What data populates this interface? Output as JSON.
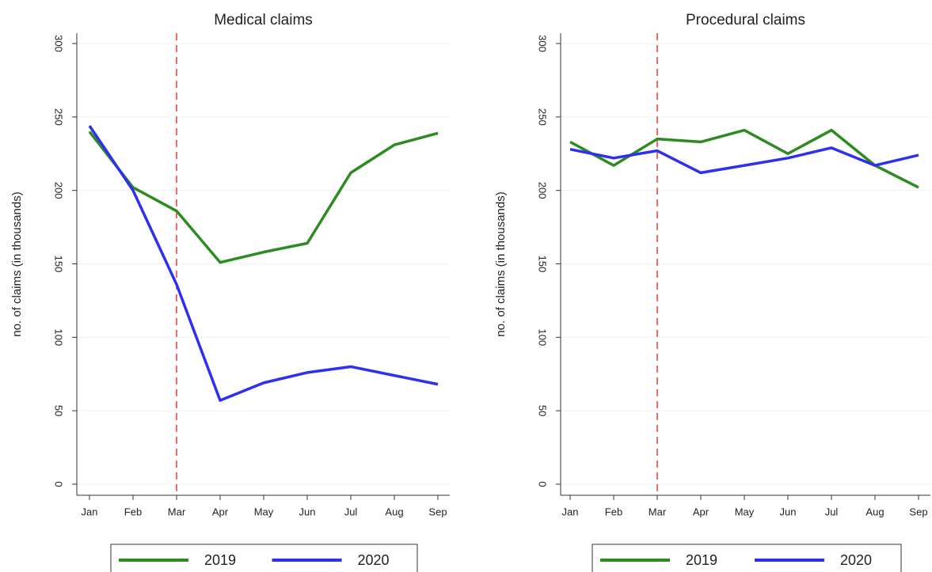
{
  "chart_data": [
    {
      "type": "line",
      "title": "Medical claims",
      "y_label": "no. of claims (in thousands)",
      "categories": [
        "Jan",
        "Feb",
        "Mar",
        "Apr",
        "May",
        "Jun",
        "Jul",
        "Aug",
        "Sep"
      ],
      "series": [
        {
          "name": "2019",
          "color": "#2e8b22",
          "values": [
            240,
            202,
            186,
            151,
            158,
            164,
            212,
            231,
            239
          ]
        },
        {
          "name": "2020",
          "color": "#2f2ff0",
          "values": [
            244,
            200,
            136,
            57,
            69,
            76,
            80,
            74,
            68
          ]
        }
      ],
      "ylim": [
        0,
        300
      ],
      "yticks": [
        0,
        50,
        100,
        150,
        200,
        250,
        300
      ],
      "grid": true,
      "vline": "Mar",
      "vline_color": "#f26b6b",
      "legend": "bottom"
    },
    {
      "type": "line",
      "title": "Procedural claims",
      "y_label": "no. of claims (in thousands)",
      "categories": [
        "Jan",
        "Feb",
        "Mar",
        "Apr",
        "May",
        "Jun",
        "Jul",
        "Aug",
        "Sep"
      ],
      "series": [
        {
          "name": "2019",
          "color": "#2e8b22",
          "values": [
            233,
            217,
            235,
            233,
            241,
            225,
            241,
            217,
            202
          ]
        },
        {
          "name": "2020",
          "color": "#2f2ff0",
          "values": [
            228,
            222,
            227,
            212,
            217,
            222,
            229,
            217,
            224
          ]
        }
      ],
      "ylim": [
        0,
        300
      ],
      "yticks": [
        0,
        50,
        100,
        150,
        200,
        250,
        300
      ],
      "grid": true,
      "vline": "Mar",
      "vline_color": "#f26b6b",
      "legend": "bottom"
    }
  ]
}
